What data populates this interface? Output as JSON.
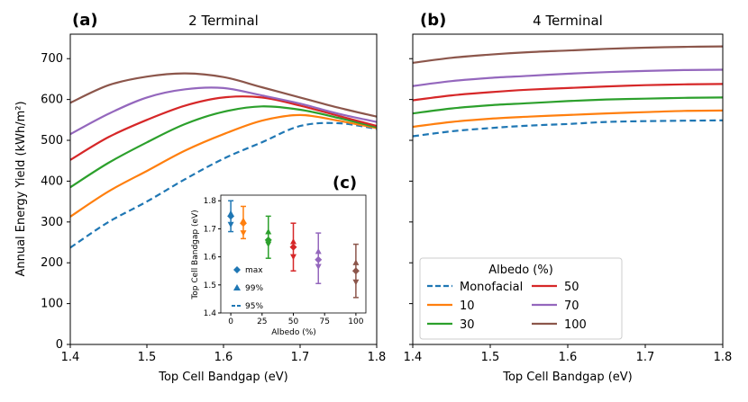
{
  "chart_data": [
    {
      "panel": "(a)",
      "title": "2 Terminal",
      "type": "line",
      "xlabel": "Top Cell Bandgap (eV)",
      "ylabel": "Annual Energy Yield (kWh/m²)",
      "xlim": [
        1.4,
        1.8
      ],
      "ylim": [
        0,
        760
      ],
      "xticks": [
        "1.4",
        "1.5",
        "1.6",
        "1.7",
        "1.8"
      ],
      "yticks": [
        "0",
        "100",
        "200",
        "300",
        "400",
        "500",
        "600",
        "700"
      ],
      "x": [
        1.4,
        1.45,
        1.5,
        1.55,
        1.6,
        1.65,
        1.7,
        1.75,
        1.8
      ],
      "series": [
        {
          "name": "Monofacial",
          "color": "#1f77b4",
          "dash": true,
          "values": [
            237,
            300,
            350,
            405,
            455,
            495,
            535,
            542,
            528
          ]
        },
        {
          "name": "10",
          "color": "#ff7f0e",
          "dash": false,
          "values": [
            313,
            375,
            425,
            475,
            515,
            548,
            562,
            548,
            530
          ]
        },
        {
          "name": "30",
          "color": "#2ca02c",
          "dash": false,
          "values": [
            385,
            445,
            495,
            540,
            570,
            583,
            575,
            555,
            532
          ]
        },
        {
          "name": "50",
          "color": "#d62728",
          "dash": false,
          "values": [
            452,
            508,
            550,
            585,
            605,
            605,
            585,
            560,
            535
          ]
        },
        {
          "name": "70",
          "color": "#9467bd",
          "dash": false,
          "values": [
            515,
            565,
            605,
            625,
            628,
            610,
            590,
            565,
            545
          ]
        },
        {
          "name": "100",
          "color": "#8c564b",
          "dash": false,
          "values": [
            592,
            635,
            656,
            664,
            655,
            630,
            605,
            580,
            558
          ]
        }
      ]
    },
    {
      "panel": "(b)",
      "title": "4 Terminal",
      "type": "line",
      "xlabel": "Top Cell Bandgap (eV)",
      "xlim": [
        1.4,
        1.8
      ],
      "ylim": [
        0,
        760
      ],
      "xticks": [
        "1.4",
        "1.5",
        "1.6",
        "1.7",
        "1.8"
      ],
      "x": [
        1.4,
        1.45,
        1.5,
        1.55,
        1.6,
        1.65,
        1.7,
        1.75,
        1.8
      ],
      "series": [
        {
          "name": "Monofacial",
          "color": "#1f77b4",
          "dash": true,
          "values": [
            510,
            522,
            530,
            536,
            540,
            545,
            547,
            548,
            549
          ]
        },
        {
          "name": "10",
          "color": "#ff7f0e",
          "dash": false,
          "values": [
            533,
            545,
            553,
            558,
            562,
            566,
            569,
            572,
            573
          ]
        },
        {
          "name": "30",
          "color": "#2ca02c",
          "dash": false,
          "values": [
            566,
            578,
            586,
            591,
            596,
            600,
            602,
            604,
            605
          ]
        },
        {
          "name": "50",
          "color": "#d62728",
          "dash": false,
          "values": [
            598,
            610,
            618,
            624,
            628,
            632,
            635,
            637,
            638
          ]
        },
        {
          "name": "70",
          "color": "#9467bd",
          "dash": false,
          "values": [
            633,
            645,
            653,
            658,
            663,
            667,
            670,
            672,
            673
          ]
        },
        {
          "name": "100",
          "color": "#8c564b",
          "dash": false,
          "values": [
            690,
            702,
            710,
            716,
            720,
            724,
            727,
            729,
            730
          ]
        }
      ]
    },
    {
      "panel": "(c)",
      "type": "scatter",
      "xlabel": "Albedo (%)",
      "ylabel": "Top Cell Bandgap (eV)",
      "xlim": [
        -8,
        108
      ],
      "ylim": [
        1.4,
        1.82
      ],
      "xticks": [
        "0",
        "25",
        "50",
        "75",
        "100"
      ],
      "yticks": [
        "1.4",
        "1.5",
        "1.6",
        "1.7",
        "1.8"
      ],
      "legend": [
        "max",
        "99%",
        "95%"
      ],
      "points": [
        {
          "albedo": 0,
          "color": "#1f77b4",
          "max": 1.745,
          "p99": 1.755,
          "low": 1.715,
          "err": [
            1.69,
            1.8
          ]
        },
        {
          "albedo": 10,
          "color": "#ff7f0e",
          "max": 1.72,
          "p99": 1.73,
          "low": 1.685,
          "err": [
            1.665,
            1.78
          ]
        },
        {
          "albedo": 30,
          "color": "#2ca02c",
          "max": 1.66,
          "p99": 1.69,
          "low": 1.645,
          "err": [
            1.595,
            1.745
          ]
        },
        {
          "albedo": 50,
          "color": "#d62728",
          "max": 1.635,
          "p99": 1.655,
          "low": 1.6,
          "err": [
            1.55,
            1.72
          ]
        },
        {
          "albedo": 70,
          "color": "#9467bd",
          "max": 1.59,
          "p99": 1.62,
          "low": 1.565,
          "err": [
            1.505,
            1.685
          ]
        },
        {
          "albedo": 100,
          "color": "#8c564b",
          "max": 1.55,
          "p99": 1.58,
          "low": 1.51,
          "err": [
            1.455,
            1.645
          ]
        }
      ]
    }
  ],
  "legend": {
    "title": "Albedo (%)",
    "entries": [
      {
        "label": "Monofacial",
        "color": "#1f77b4",
        "dash": true
      },
      {
        "label": "50",
        "color": "#d62728",
        "dash": false
      },
      {
        "label": "10",
        "color": "#ff7f0e",
        "dash": false
      },
      {
        "label": "70",
        "color": "#9467bd",
        "dash": false
      },
      {
        "label": "30",
        "color": "#2ca02c",
        "dash": false
      },
      {
        "label": "100",
        "color": "#8c564b",
        "dash": false
      }
    ]
  }
}
